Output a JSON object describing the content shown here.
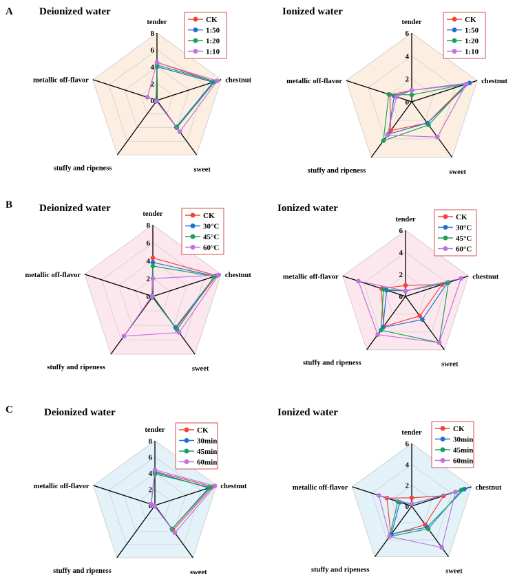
{
  "chart_data": [
    {
      "type": "radar",
      "panel": "A",
      "title": "Deionized water",
      "axes": [
        "tender",
        "chestnut",
        "sweet",
        "stuffy and ripeness",
        "metallic off-flavor"
      ],
      "rmax": 8,
      "rticks": [
        0,
        2,
        4,
        6,
        8
      ],
      "legend_position": "top-right",
      "fill_color": "#fcefe2",
      "series": [
        {
          "name": "CK",
          "color": "#f0453b",
          "values": [
            4.5,
            7.2,
            4.0,
            0.1,
            0.1
          ]
        },
        {
          "name": "1:50",
          "color": "#1f6fd2",
          "values": [
            4.0,
            7.0,
            3.9,
            0.1,
            0.1
          ]
        },
        {
          "name": "1:20",
          "color": "#1aa05a",
          "values": [
            4.2,
            7.2,
            4.0,
            0.1,
            0.1
          ]
        },
        {
          "name": "1:10",
          "color": "#c072e0",
          "values": [
            4.5,
            7.5,
            4.6,
            0.1,
            1.2
          ]
        }
      ]
    },
    {
      "type": "radar",
      "panel": "",
      "title": "Ionized water",
      "axes": [
        "tender",
        "chestnut",
        "sweet",
        "stuffy and ripeness",
        "metallic off-flavor"
      ],
      "rmax": 6,
      "rticks": [
        0,
        2,
        4,
        6
      ],
      "legend_position": "top-right",
      "fill_color": "#fcefe2",
      "series": [
        {
          "name": "CK",
          "color": "#f0453b",
          "values": [
            1.0,
            5.0,
            2.3,
            3.1,
            2.0
          ]
        },
        {
          "name": "1:50",
          "color": "#1f6fd2",
          "values": [
            1.0,
            5.3,
            2.3,
            3.5,
            1.6
          ]
        },
        {
          "name": "1:20",
          "color": "#1aa05a",
          "values": [
            0.6,
            5.0,
            2.5,
            4.2,
            2.1
          ]
        },
        {
          "name": "1:10",
          "color": "#c072e0",
          "values": [
            1.0,
            5.0,
            3.8,
            3.6,
            1.4
          ]
        }
      ]
    },
    {
      "type": "radar",
      "panel": "B",
      "title": "Deionized water",
      "axes": [
        "tender",
        "chestnut",
        "sweet",
        "stuffy and ripeness",
        "metallic off-flavor"
      ],
      "rmax": 8,
      "rticks": [
        0,
        2,
        4,
        6,
        8
      ],
      "legend_position": "top-right",
      "fill_color": "#fce7ee",
      "series": [
        {
          "name": "CK",
          "color": "#f0453b",
          "values": [
            4.3,
            7.5,
            4.4,
            0.1,
            0.1
          ]
        },
        {
          "name": "30°C",
          "color": "#1f6fd2",
          "values": [
            3.8,
            7.3,
            4.3,
            0.1,
            0.1
          ]
        },
        {
          "name": "45°C",
          "color": "#1aa05a",
          "values": [
            3.4,
            7.2,
            4.6,
            0.1,
            0.1
          ]
        },
        {
          "name": "60°C",
          "color": "#c072e0",
          "values": [
            2.0,
            7.7,
            5.0,
            5.5,
            0.1
          ]
        }
      ]
    },
    {
      "type": "radar",
      "panel": "",
      "title": "Ionized water",
      "axes": [
        "tender",
        "chestnut",
        "sweet",
        "stuffy and ripeness",
        "metallic off-flavor"
      ],
      "rmax": 6,
      "rticks": [
        0,
        2,
        4,
        6
      ],
      "legend_position": "top-right",
      "fill_color": "#fce7ee",
      "series": [
        {
          "name": "CK",
          "color": "#f0453b",
          "values": [
            1.0,
            3.5,
            2.2,
            3.4,
            2.3
          ]
        },
        {
          "name": "30°C",
          "color": "#1f6fd2",
          "values": [
            0.5,
            4.0,
            2.6,
            3.5,
            1.8
          ]
        },
        {
          "name": "45°C",
          "color": "#1aa05a",
          "values": [
            0.5,
            4.1,
            5.2,
            3.8,
            2.1
          ]
        },
        {
          "name": "60°C",
          "color": "#c072e0",
          "values": [
            0.5,
            5.3,
            5.2,
            4.3,
            4.5
          ]
        }
      ]
    },
    {
      "type": "radar",
      "panel": "C",
      "title": "Deionized water",
      "axes": [
        "tender",
        "chestnut",
        "sweet",
        "stuffy and ripeness",
        "metallic off-flavor"
      ],
      "rmax": 8,
      "rticks": [
        0,
        2,
        4,
        6,
        8
      ],
      "legend_position": "top-right",
      "fill_color": "#e2f2f8",
      "series": [
        {
          "name": "CK",
          "color": "#f0453b",
          "values": [
            4.2,
            7.5,
            3.8,
            0.1,
            0.5
          ]
        },
        {
          "name": "30min",
          "color": "#1f6fd2",
          "values": [
            4.1,
            7.0,
            3.6,
            0.1,
            0.5
          ]
        },
        {
          "name": "45min",
          "color": "#1aa05a",
          "values": [
            3.9,
            7.2,
            3.6,
            0.1,
            0.5
          ]
        },
        {
          "name": "60min",
          "color": "#c072e0",
          "values": [
            4.4,
            7.8,
            4.2,
            0.1,
            0.5
          ]
        }
      ]
    },
    {
      "type": "radar",
      "panel": "",
      "title": "Ionized water",
      "axes": [
        "tender",
        "chestnut",
        "sweet",
        "stuffy and ripeness",
        "metallic off-flavor"
      ],
      "rmax": 6,
      "rticks": [
        0,
        2,
        4,
        6
      ],
      "legend_position": "top-right",
      "fill_color": "#e2f2f8",
      "series": [
        {
          "name": "CK",
          "color": "#f0453b",
          "values": [
            0.8,
            3.2,
            2.2,
            3.4,
            2.5
          ]
        },
        {
          "name": "30min",
          "color": "#1f6fd2",
          "values": [
            0.2,
            5.3,
            2.5,
            3.3,
            1.2
          ]
        },
        {
          "name": "45min",
          "color": "#1aa05a",
          "values": [
            0.2,
            5.0,
            2.7,
            3.6,
            1.4
          ]
        },
        {
          "name": "60min",
          "color": "#c072e0",
          "values": [
            0.2,
            4.4,
            4.9,
            3.6,
            3.3
          ]
        }
      ]
    }
  ]
}
